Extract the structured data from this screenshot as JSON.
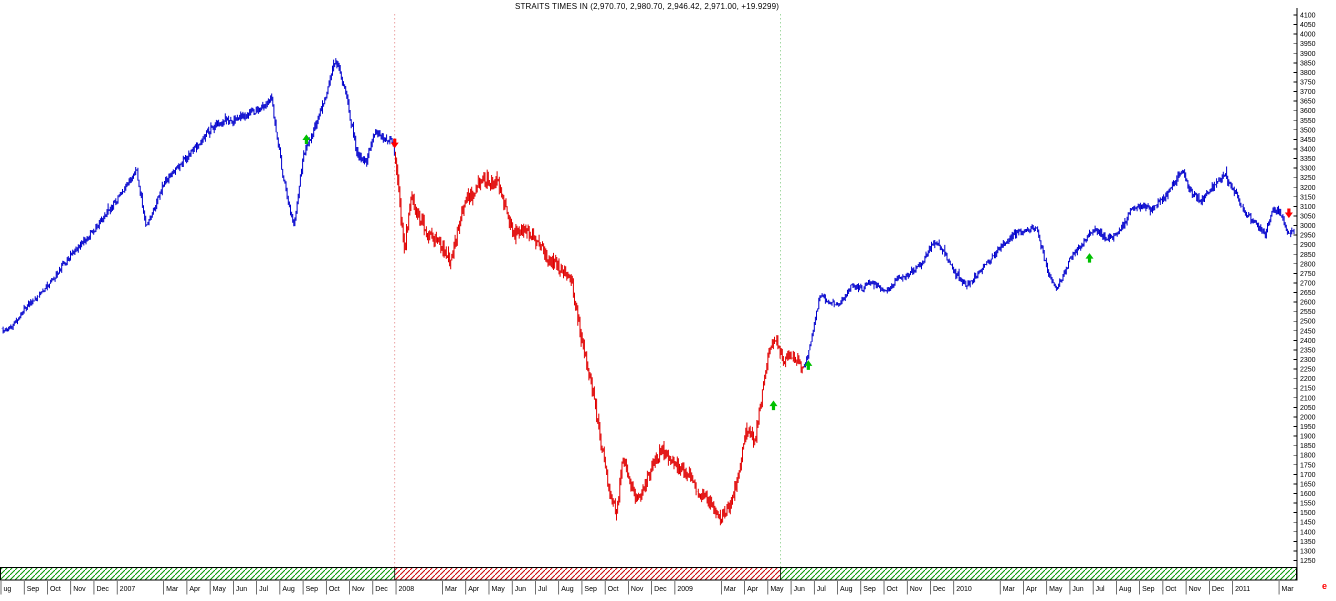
{
  "window": {
    "title": "STRAITS TIMES IN (2,970.70, 2,980.70, 2,946.42, 2,971.00, +19.9299)"
  },
  "footer": {
    "more_data_indicator": "e"
  },
  "chart_data": {
    "type": "bar",
    "style": "ohlc-daily-bars",
    "symbol": "STRAITS TIMES IN",
    "title": "STRAITS TIMES IN (2,970.70, 2,980.70, 2,946.42, 2,971.00, +19.9299)",
    "last_quote": {
      "open": 2970.7,
      "high": 2980.7,
      "low": 2946.42,
      "close": 2971.0,
      "change": 19.9299
    },
    "y_axis": {
      "side": "right",
      "min": 1250,
      "max": 4100,
      "step": 50
    },
    "x_axis": {
      "unit": "months_from_aug_2006",
      "start": "Aug 2006",
      "end": "Mar 2011",
      "labels": [
        "ug",
        "Sep",
        "Oct",
        "Nov",
        "Dec",
        "2007",
        "Mar",
        "Apr",
        "May",
        "Jun",
        "Jul",
        "Aug",
        "Sep",
        "Oct",
        "Nov",
        "Dec",
        "2008",
        "Mar",
        "Apr",
        "May",
        "Jun",
        "Jul",
        "Aug",
        "Sep",
        "Oct",
        "Nov",
        "Dec",
        "2009",
        "Mar",
        "Apr",
        "May",
        "Jun",
        "Jul",
        "Aug",
        "Sep",
        "Oct",
        "Nov",
        "Dec",
        "2010",
        "Mar",
        "Apr",
        "May",
        "Jun",
        "Jul",
        "Aug",
        "Sep",
        "Oct",
        "Nov",
        "Dec",
        "2011",
        "Mar"
      ],
      "positions": [
        0,
        1,
        2,
        3,
        4,
        5,
        7,
        8,
        9,
        10,
        11,
        12,
        13,
        14,
        15,
        16,
        17,
        19,
        20,
        21,
        22,
        23,
        24,
        25,
        26,
        27,
        28,
        29,
        31,
        32,
        33,
        34,
        35,
        36,
        37,
        38,
        39,
        40,
        41,
        43,
        44,
        45,
        46,
        47,
        48,
        49,
        50,
        51,
        52,
        53,
        55
      ]
    },
    "colors": {
      "up_regime": "#0000cc",
      "down_regime": "#e00000",
      "buy": "#00c000",
      "sell": "#ff0000",
      "band_green": "#009900",
      "band_red": "#cc0000"
    },
    "anchors": [
      [
        0,
        2450
      ],
      [
        0.5,
        2480
      ],
      [
        1,
        2570
      ],
      [
        2,
        2690
      ],
      [
        3,
        2850
      ],
      [
        4,
        2985
      ],
      [
        5,
        3140
      ],
      [
        5.8,
        3290
      ],
      [
        6.2,
        2990
      ],
      [
        7,
        3230
      ],
      [
        8,
        3360
      ],
      [
        9,
        3510
      ],
      [
        10,
        3560
      ],
      [
        11,
        3600
      ],
      [
        11.6,
        3665
      ],
      [
        12.1,
        3250
      ],
      [
        12.55,
        2990
      ],
      [
        13,
        3380
      ],
      [
        13.6,
        3560
      ],
      [
        14,
        3700
      ],
      [
        14.35,
        3870
      ],
      [
        14.8,
        3690
      ],
      [
        15.3,
        3360
      ],
      [
        15.7,
        3330
      ],
      [
        16,
        3490
      ],
      [
        16.85,
        3430
      ],
      [
        17.3,
        2870
      ],
      [
        17.6,
        3140
      ],
      [
        18,
        3030
      ],
      [
        18.5,
        2930
      ],
      [
        19,
        2880
      ],
      [
        19.3,
        2800
      ],
      [
        19.7,
        3020
      ],
      [
        20,
        3150
      ],
      [
        20.7,
        3230
      ],
      [
        21.3,
        3240
      ],
      [
        22,
        2950
      ],
      [
        22.5,
        2990
      ],
      [
        23,
        2920
      ],
      [
        23.5,
        2830
      ],
      [
        24,
        2780
      ],
      [
        24.5,
        2710
      ],
      [
        25,
        2360
      ],
      [
        25.4,
        2150
      ],
      [
        25.8,
        1850
      ],
      [
        26.2,
        1580
      ],
      [
        26.45,
        1500
      ],
      [
        26.7,
        1780
      ],
      [
        27,
        1680
      ],
      [
        27.3,
        1560
      ],
      [
        27.7,
        1650
      ],
      [
        28,
        1760
      ],
      [
        28.4,
        1830
      ],
      [
        29,
        1750
      ],
      [
        29.6,
        1700
      ],
      [
        30,
        1600
      ],
      [
        30.5,
        1555
      ],
      [
        30.9,
        1465
      ],
      [
        31.3,
        1530
      ],
      [
        31.7,
        1690
      ],
      [
        32,
        1920
      ],
      [
        32.4,
        1880
      ],
      [
        33,
        2330
      ],
      [
        33.3,
        2420
      ],
      [
        33.6,
        2290
      ],
      [
        34,
        2330
      ],
      [
        34.5,
        2250
      ],
      [
        34.8,
        2380
      ],
      [
        35.2,
        2640
      ],
      [
        35.6,
        2600
      ],
      [
        36,
        2590
      ],
      [
        36.6,
        2690
      ],
      [
        37,
        2670
      ],
      [
        37.4,
        2710
      ],
      [
        38,
        2650
      ],
      [
        38.6,
        2730
      ],
      [
        39,
        2740
      ],
      [
        39.5,
        2790
      ],
      [
        40,
        2900
      ],
      [
        40.4,
        2890
      ],
      [
        41,
        2750
      ],
      [
        41.5,
        2680
      ],
      [
        42,
        2750
      ],
      [
        42.6,
        2830
      ],
      [
        43,
        2890
      ],
      [
        43.6,
        2960
      ],
      [
        44,
        2975
      ],
      [
        44.5,
        2990
      ],
      [
        45,
        2760
      ],
      [
        45.35,
        2660
      ],
      [
        45.8,
        2770
      ],
      [
        46,
        2840
      ],
      [
        46.5,
        2900
      ],
      [
        47,
        2990
      ],
      [
        47.5,
        2930
      ],
      [
        48,
        2950
      ],
      [
        48.6,
        3080
      ],
      [
        49,
        3100
      ],
      [
        49.5,
        3090
      ],
      [
        50,
        3140
      ],
      [
        50.8,
        3290
      ],
      [
        51.2,
        3160
      ],
      [
        51.6,
        3130
      ],
      [
        52,
        3190
      ],
      [
        52.6,
        3260
      ],
      [
        53,
        3190
      ],
      [
        53.5,
        3060
      ],
      [
        54,
        3010
      ],
      [
        54.35,
        2950
      ],
      [
        54.7,
        3090
      ],
      [
        55.05,
        3060
      ],
      [
        55.35,
        2950
      ],
      [
        55.6,
        2971
      ]
    ],
    "regimes": [
      {
        "from": 0,
        "to": 16.9,
        "color": "blue"
      },
      {
        "from": 16.9,
        "to": 34.5,
        "color": "red"
      },
      {
        "from": 34.5,
        "to": 55.6,
        "color": "blue"
      }
    ],
    "band_segments": [
      {
        "from": 0,
        "to": 16.9,
        "color": "green"
      },
      {
        "from": 16.9,
        "to": 33.5,
        "color": "red"
      },
      {
        "from": 33.5,
        "to": 55.6,
        "color": "green"
      }
    ],
    "markers": [
      {
        "t": 13.1,
        "price": 3450,
        "dir": "up"
      },
      {
        "t": 16.9,
        "price": 3430,
        "dir": "down"
      },
      {
        "t": 33.2,
        "price": 2060,
        "dir": "up"
      },
      {
        "t": 34.7,
        "price": 2270,
        "dir": "up"
      },
      {
        "t": 46.8,
        "price": 2830,
        "dir": "up"
      },
      {
        "t": 55.38,
        "price": 3065,
        "dir": "down"
      }
    ]
  }
}
